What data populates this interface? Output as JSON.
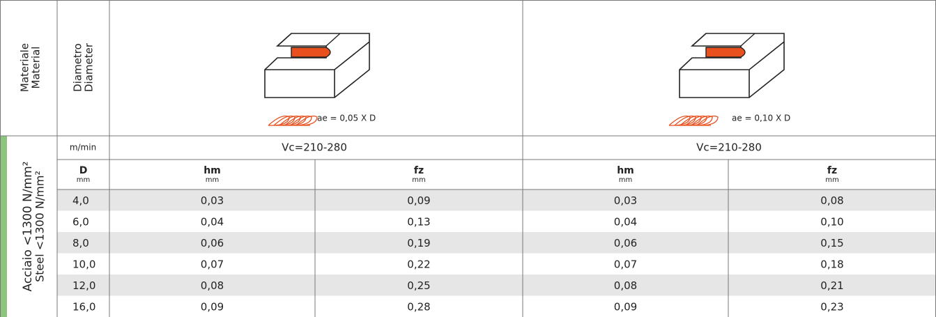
{
  "header": {
    "material": [
      "Materiale",
      "Material"
    ],
    "diameter": [
      "Diametro",
      "Diameter"
    ],
    "groups": [
      {
        "ae": "ae = 0,05 X D",
        "vc": "Vc=210-280"
      },
      {
        "ae": "ae = 0,10 X D",
        "vc": "Vc=210-280"
      }
    ]
  },
  "unit_row": {
    "unit": "m/min"
  },
  "column_headers": [
    {
      "name": "D",
      "unit": "mm"
    },
    {
      "name": "hm",
      "unit": "mm"
    },
    {
      "name": "fz",
      "unit": "mm"
    },
    {
      "name": "hm",
      "unit": "mm"
    },
    {
      "name": "fz",
      "unit": "mm"
    }
  ],
  "material_group": [
    "Acciaio <1300 N/mm²",
    "Steel <1300 N/mm²"
  ],
  "table": {
    "rows": [
      [
        "4,0",
        "0,03",
        "0,09",
        "0,03",
        "0,08"
      ],
      [
        "6,0",
        "0,04",
        "0,13",
        "0,04",
        "0,10"
      ],
      [
        "8,0",
        "0,06",
        "0,19",
        "0,06",
        "0,15"
      ],
      [
        "10,0",
        "0,07",
        "0,22",
        "0,07",
        "0,18"
      ],
      [
        "12,0",
        "0,08",
        "0,25",
        "0,08",
        "0,21"
      ],
      [
        "16,0",
        "0,09",
        "0,28",
        "0,09",
        "0,23"
      ]
    ]
  }
}
